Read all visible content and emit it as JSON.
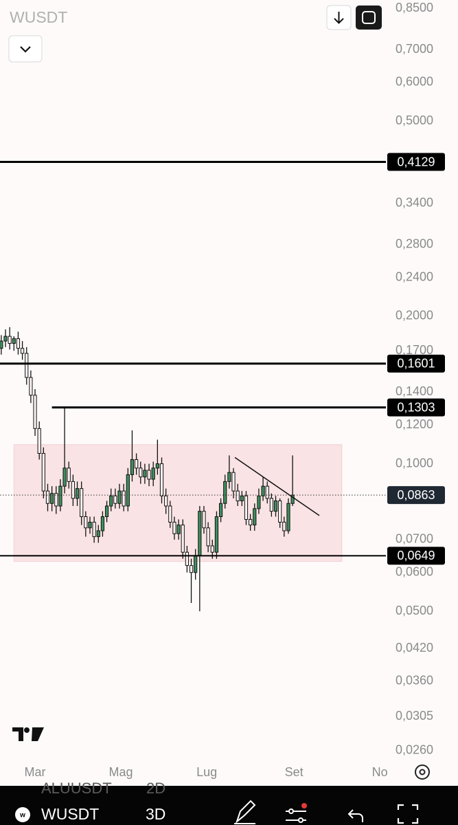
{
  "chart_data": {
    "type": "candlestick",
    "symbol": "WUSDT",
    "interval": "3D",
    "background_symbol": "ALUUSDT",
    "background_interval": "2D",
    "log_scale": true,
    "up_color": "#3f8f5e",
    "down_color": "#fdf3f3",
    "wick_color": "#111111",
    "x": [
      -24,
      -21,
      -18,
      -15,
      -12,
      -9,
      -6,
      -3,
      0,
      3,
      6,
      9,
      12,
      15,
      18,
      21,
      24,
      27,
      30,
      33,
      36,
      39,
      42,
      45,
      48,
      51,
      54,
      57,
      60,
      63,
      66,
      69,
      72,
      75,
      78,
      81,
      84,
      87,
      90,
      93,
      96,
      99,
      102,
      105,
      108,
      111,
      114,
      117,
      120,
      123,
      126,
      129,
      132,
      135,
      138,
      141,
      144,
      147,
      150,
      153,
      156,
      159,
      162,
      165,
      168,
      171,
      174,
      177,
      180,
      183
    ],
    "open": [
      0.172,
      0.178,
      0.182,
      0.176,
      0.18,
      0.172,
      0.168,
      0.15,
      0.138,
      0.118,
      0.105,
      0.088,
      0.083,
      0.087,
      0.082,
      0.09,
      0.098,
      0.092,
      0.085,
      0.089,
      0.078,
      0.074,
      0.076,
      0.071,
      0.073,
      0.078,
      0.082,
      0.086,
      0.083,
      0.088,
      0.082,
      0.095,
      0.102,
      0.098,
      0.094,
      0.097,
      0.093,
      0.098,
      0.1,
      0.086,
      0.082,
      0.076,
      0.072,
      0.075,
      0.066,
      0.062,
      0.06,
      0.065,
      0.08,
      0.074,
      0.068,
      0.066,
      0.078,
      0.083,
      0.092,
      0.096,
      0.088,
      0.084,
      0.086,
      0.077,
      0.075,
      0.081,
      0.086,
      0.09,
      0.085,
      0.08,
      0.084,
      0.076,
      0.073,
      0.083
    ],
    "high": [
      0.183,
      0.188,
      0.19,
      0.182,
      0.186,
      0.178,
      0.173,
      0.155,
      0.142,
      0.122,
      0.108,
      0.091,
      0.09,
      0.09,
      0.093,
      0.1303,
      0.101,
      0.095,
      0.092,
      0.092,
      0.08,
      0.078,
      0.078,
      0.075,
      0.08,
      0.084,
      0.089,
      0.089,
      0.091,
      0.091,
      0.098,
      0.117,
      0.105,
      0.101,
      0.1,
      0.1,
      0.101,
      0.112,
      0.103,
      0.089,
      0.084,
      0.078,
      0.077,
      0.077,
      0.068,
      0.064,
      0.067,
      0.082,
      0.082,
      0.076,
      0.07,
      0.08,
      0.085,
      0.095,
      0.104,
      0.098,
      0.091,
      0.088,
      0.088,
      0.079,
      0.083,
      0.089,
      0.094,
      0.092,
      0.087,
      0.086,
      0.085,
      0.078,
      0.085,
      0.104
    ],
    "low": [
      0.167,
      0.173,
      0.171,
      0.17,
      0.167,
      0.163,
      0.145,
      0.133,
      0.114,
      0.102,
      0.085,
      0.08,
      0.08,
      0.079,
      0.08,
      0.087,
      0.089,
      0.082,
      0.082,
      0.075,
      0.071,
      0.072,
      0.069,
      0.069,
      0.071,
      0.076,
      0.08,
      0.081,
      0.081,
      0.08,
      0.08,
      0.092,
      0.095,
      0.091,
      0.091,
      0.09,
      0.09,
      0.095,
      0.083,
      0.079,
      0.074,
      0.07,
      0.07,
      0.064,
      0.06,
      0.052,
      0.058,
      0.05,
      0.072,
      0.066,
      0.064,
      0.064,
      0.076,
      0.081,
      0.089,
      0.085,
      0.082,
      0.082,
      0.075,
      0.073,
      0.073,
      0.079,
      0.084,
      0.083,
      0.078,
      0.078,
      0.074,
      0.071,
      0.072,
      0.082
    ],
    "close": [
      0.178,
      0.182,
      0.176,
      0.18,
      0.172,
      0.168,
      0.15,
      0.138,
      0.118,
      0.105,
      0.088,
      0.083,
      0.087,
      0.082,
      0.09,
      0.098,
      0.092,
      0.085,
      0.089,
      0.078,
      0.074,
      0.076,
      0.071,
      0.073,
      0.078,
      0.082,
      0.086,
      0.083,
      0.088,
      0.082,
      0.095,
      0.102,
      0.098,
      0.094,
      0.097,
      0.093,
      0.098,
      0.1,
      0.086,
      0.082,
      0.076,
      0.072,
      0.075,
      0.066,
      0.062,
      0.06,
      0.065,
      0.08,
      0.074,
      0.068,
      0.066,
      0.078,
      0.083,
      0.092,
      0.096,
      0.088,
      0.084,
      0.086,
      0.077,
      0.075,
      0.081,
      0.086,
      0.09,
      0.085,
      0.08,
      0.084,
      0.076,
      0.073,
      0.083,
      0.0863
    ],
    "xlim": [
      -24.9,
      249.3
    ],
    "xticks": [
      {
        "value": 0,
        "label": "Mar"
      },
      {
        "value": 61,
        "label": "Mag"
      },
      {
        "value": 122,
        "label": "Lug"
      },
      {
        "value": 184,
        "label": "Set"
      },
      {
        "value": 245,
        "label": "No"
      }
    ],
    "ylim": [
      0.0249,
      0.8836
    ],
    "yticks": [
      {
        "value": 0.85,
        "label": "0,8500"
      },
      {
        "value": 0.7,
        "label": "0,7000"
      },
      {
        "value": 0.6,
        "label": "0,6000"
      },
      {
        "value": 0.5,
        "label": "0,5000"
      },
      {
        "value": 0.34,
        "label": "0,3400"
      },
      {
        "value": 0.28,
        "label": "0,2800"
      },
      {
        "value": 0.24,
        "label": "0,2400"
      },
      {
        "value": 0.2,
        "label": "0,2000"
      },
      {
        "value": 0.17,
        "label": "0,1700"
      },
      {
        "value": 0.14,
        "label": "0,1400"
      },
      {
        "value": 0.12,
        "label": "0,1200"
      },
      {
        "value": 0.1,
        "label": "0,1000"
      },
      {
        "value": 0.07,
        "label": "0,0700"
      },
      {
        "value": 0.06,
        "label": "0,0600"
      },
      {
        "value": 0.05,
        "label": "0,0500"
      },
      {
        "value": 0.042,
        "label": "0,0420"
      },
      {
        "value": 0.036,
        "label": "0,0360"
      },
      {
        "value": 0.0305,
        "label": "0,0305"
      },
      {
        "value": 0.026,
        "label": "0,0260"
      }
    ],
    "levels": [
      {
        "value": 0.4129,
        "label": "0,4129",
        "start": -24.9
      },
      {
        "value": 0.1601,
        "label": "0,1601",
        "start": -24.9
      },
      {
        "value": 0.1303,
        "label": "0,1303",
        "start": 12
      },
      {
        "value": 0.0649,
        "label": "0,0649",
        "start": -24.9
      }
    ],
    "last_price": {
      "value": 0.0863,
      "label": "0,0863"
    },
    "zone": {
      "start": -15,
      "end": 218,
      "top": 0.1094,
      "bottom": 0.0632,
      "color": "#f9e3e4"
    },
    "trendline": {
      "x": [
        142,
        202
      ],
      "y": [
        0.103,
        0.0784
      ]
    }
  }
}
